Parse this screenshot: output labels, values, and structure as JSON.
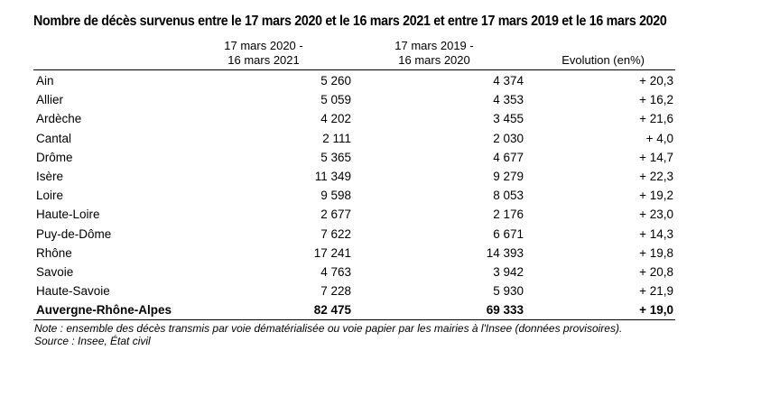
{
  "title": "Nombre de décès survenus entre le 17 mars 2020 et le 16 mars 2021 et entre 17 mars 2019 et le 16 mars 2020",
  "columns": {
    "c1_line1": "17 mars 2020 -",
    "c1_line2": "16 mars 2021",
    "c2_line1": "17 mars 2019 -",
    "c2_line2": "16 mars 2020",
    "c3": "Evolution (en%)"
  },
  "rows": [
    {
      "name": "Ain",
      "v2020": "5 260",
      "v2019": "4 374",
      "evo": "+ 20,3"
    },
    {
      "name": "Allier",
      "v2020": "5 059",
      "v2019": "4 353",
      "evo": "+ 16,2"
    },
    {
      "name": "Ardèche",
      "v2020": "4 202",
      "v2019": "3 455",
      "evo": "+ 21,6"
    },
    {
      "name": "Cantal",
      "v2020": "2 111",
      "v2019": "2 030",
      "evo": "+ 4,0"
    },
    {
      "name": "Drôme",
      "v2020": "5 365",
      "v2019": "4 677",
      "evo": "+ 14,7"
    },
    {
      "name": "Isère",
      "v2020": "11 349",
      "v2019": "9 279",
      "evo": "+ 22,3"
    },
    {
      "name": "Loire",
      "v2020": "9 598",
      "v2019": "8 053",
      "evo": "+ 19,2"
    },
    {
      "name": "Haute-Loire",
      "v2020": "2 677",
      "v2019": "2 176",
      "evo": "+ 23,0"
    },
    {
      "name": "Puy-de-Dôme",
      "v2020": "7 622",
      "v2019": "6 671",
      "evo": "+ 14,3"
    },
    {
      "name": "Rhône",
      "v2020": "17 241",
      "v2019": "14 393",
      "evo": "+ 19,8"
    },
    {
      "name": "Savoie",
      "v2020": "4 763",
      "v2019": "3 942",
      "evo": "+ 20,8"
    },
    {
      "name": "Haute-Savoie",
      "v2020": "7 228",
      "v2019": "5 930",
      "evo": "+ 21,9"
    }
  ],
  "total": {
    "name": "Auvergne-Rhône-Alpes",
    "v2020": "82 475",
    "v2019": "69 333",
    "evo": "+ 19,0"
  },
  "note": "Note : ensemble des décès transmis par voie dématérialisée ou voie papier par les mairies à l'Insee (données provisoires).",
  "source": "Source : Insee, État civil"
}
